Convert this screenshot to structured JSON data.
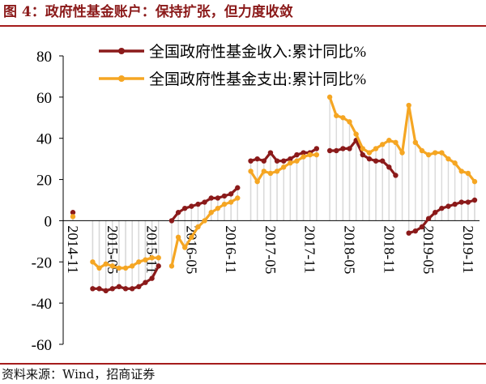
{
  "figure_title": "图 4：政府性基金账户：保持扩张，但力度收敛",
  "source_note": "资料来源：Wind，招商证券",
  "colors": {
    "revenue": "#8b1a1a",
    "expenditure": "#f5a623",
    "stem": "#d9d9d9",
    "rule": "#a51c1c",
    "title": "#8b1a1a"
  },
  "chart_data": {
    "type": "line",
    "title": "",
    "xlabel": "",
    "ylabel": "",
    "ylim": [
      -60,
      80
    ],
    "yticks": [
      -60,
      -40,
      -20,
      0,
      20,
      40,
      60,
      80
    ],
    "ytick_labels": [
      "-60",
      "-40",
      "-20",
      "0",
      "20",
      "40",
      "60",
      "80"
    ],
    "x_range": [
      "2014-11",
      "2019-12"
    ],
    "xtick_labels": [
      "2014-11",
      "2015-05",
      "2015-11",
      "2016-05",
      "2016-11",
      "2017-05",
      "2017-11",
      "2018-05",
      "2018-11",
      "2019-05",
      "2019-11"
    ],
    "legend_position": "top-right",
    "grid": false,
    "drop_lines": true,
    "series": [
      {
        "name": "全国政府性基金收入:累计同比%",
        "color": "#8b1a1a",
        "points": [
          [
            "2014-11",
            4
          ],
          [
            "2015-02",
            -33
          ],
          [
            "2015-03",
            -33
          ],
          [
            "2015-04",
            -34
          ],
          [
            "2015-05",
            -33
          ],
          [
            "2015-06",
            -32
          ],
          [
            "2015-07",
            -33
          ],
          [
            "2015-08",
            -33
          ],
          [
            "2015-09",
            -32
          ],
          [
            "2015-10",
            -30
          ],
          [
            "2015-11",
            -28
          ],
          [
            "2015-12",
            -22
          ],
          [
            "2016-02",
            0
          ],
          [
            "2016-03",
            4
          ],
          [
            "2016-04",
            6
          ],
          [
            "2016-05",
            7
          ],
          [
            "2016-06",
            8
          ],
          [
            "2016-07",
            9
          ],
          [
            "2016-08",
            11
          ],
          [
            "2016-09",
            11
          ],
          [
            "2016-10",
            12
          ],
          [
            "2016-11",
            13
          ],
          [
            "2016-12",
            16
          ],
          [
            "2017-02",
            29
          ],
          [
            "2017-03",
            30
          ],
          [
            "2017-04",
            29
          ],
          [
            "2017-05",
            33
          ],
          [
            "2017-06",
            29
          ],
          [
            "2017-07",
            29
          ],
          [
            "2017-08",
            30
          ],
          [
            "2017-09",
            32
          ],
          [
            "2017-10",
            33
          ],
          [
            "2017-11",
            33
          ],
          [
            "2017-12",
            35
          ],
          [
            "2018-02",
            34
          ],
          [
            "2018-03",
            34
          ],
          [
            "2018-04",
            35
          ],
          [
            "2018-05",
            35
          ],
          [
            "2018-06",
            39
          ],
          [
            "2018-07",
            32
          ],
          [
            "2018-08",
            30
          ],
          [
            "2018-09",
            29
          ],
          [
            "2018-10",
            29
          ],
          [
            "2018-11",
            26
          ],
          [
            "2018-12",
            22
          ],
          [
            "2019-02",
            -6
          ],
          [
            "2019-03",
            -5
          ],
          [
            "2019-04",
            -3
          ],
          [
            "2019-05",
            1
          ],
          [
            "2019-06",
            4
          ],
          [
            "2019-07",
            6
          ],
          [
            "2019-08",
            7
          ],
          [
            "2019-09",
            8
          ],
          [
            "2019-10",
            9
          ],
          [
            "2019-11",
            9
          ],
          [
            "2019-12",
            10
          ]
        ]
      },
      {
        "name": "全国政府性基金支出:累计同比%",
        "color": "#f5a623",
        "points": [
          [
            "2014-11",
            2
          ],
          [
            "2015-02",
            -20
          ],
          [
            "2015-03",
            -23
          ],
          [
            "2015-04",
            -21
          ],
          [
            "2015-05",
            -22
          ],
          [
            "2015-06",
            -23
          ],
          [
            "2015-07",
            -23
          ],
          [
            "2015-08",
            -22
          ],
          [
            "2015-09",
            -20
          ],
          [
            "2015-10",
            -19
          ],
          [
            "2015-11",
            -18
          ],
          [
            "2015-12",
            -18
          ],
          [
            "2016-02",
            -22
          ],
          [
            "2016-03",
            -8
          ],
          [
            "2016-04",
            -13
          ],
          [
            "2016-05",
            -8
          ],
          [
            "2016-06",
            -3
          ],
          [
            "2016-07",
            0
          ],
          [
            "2016-08",
            4
          ],
          [
            "2016-09",
            6
          ],
          [
            "2016-10",
            8
          ],
          [
            "2016-11",
            9
          ],
          [
            "2016-12",
            11
          ],
          [
            "2017-02",
            24
          ],
          [
            "2017-03",
            19
          ],
          [
            "2017-04",
            24
          ],
          [
            "2017-05",
            23
          ],
          [
            "2017-06",
            24
          ],
          [
            "2017-07",
            26
          ],
          [
            "2017-08",
            28
          ],
          [
            "2017-09",
            29
          ],
          [
            "2017-10",
            31
          ],
          [
            "2017-11",
            32
          ],
          [
            "2017-12",
            32
          ],
          [
            "2018-02",
            60
          ],
          [
            "2018-03",
            51
          ],
          [
            "2018-04",
            50
          ],
          [
            "2018-05",
            48
          ],
          [
            "2018-06",
            42
          ],
          [
            "2018-07",
            35
          ],
          [
            "2018-08",
            33
          ],
          [
            "2018-09",
            35
          ],
          [
            "2018-10",
            37
          ],
          [
            "2018-11",
            39
          ],
          [
            "2018-12",
            38
          ],
          [
            "2019-01",
            33
          ],
          [
            "2019-02",
            56
          ],
          [
            "2019-03",
            38
          ],
          [
            "2019-04",
            34
          ],
          [
            "2019-05",
            32
          ],
          [
            "2019-06",
            33
          ],
          [
            "2019-07",
            33
          ],
          [
            "2019-08",
            30
          ],
          [
            "2019-09",
            28
          ],
          [
            "2019-10",
            24
          ],
          [
            "2019-11",
            23
          ],
          [
            "2019-12",
            19
          ]
        ]
      }
    ]
  }
}
